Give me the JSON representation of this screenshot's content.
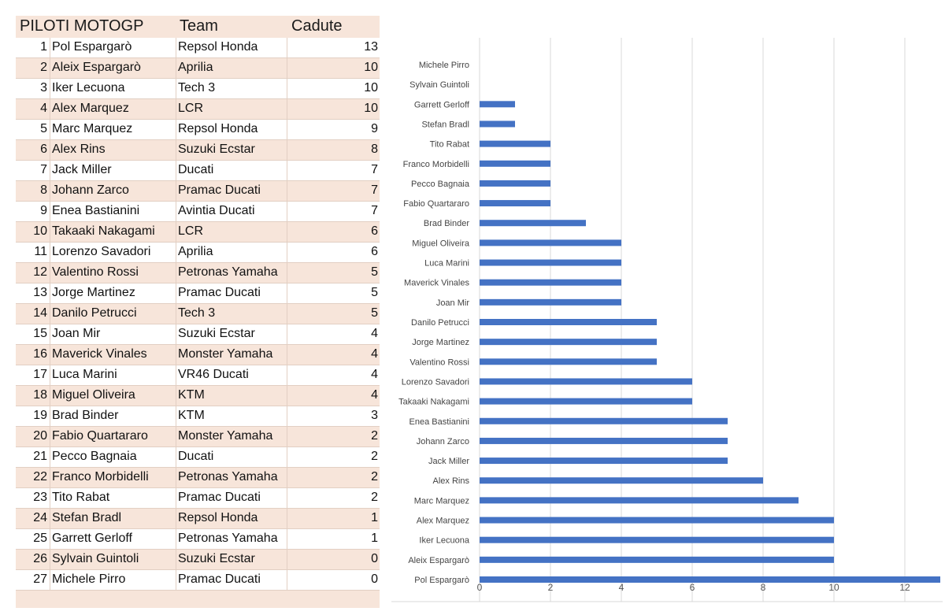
{
  "table": {
    "headers": [
      "PILOTI MOTOGP",
      "Team",
      "Cadute"
    ],
    "rows": [
      {
        "rank": "1",
        "name": "Pol Espargarò",
        "team": "Repsol Honda",
        "value": "13"
      },
      {
        "rank": "2",
        "name": "Aleix Espargarò",
        "team": "Aprilia",
        "value": "10"
      },
      {
        "rank": "3",
        "name": "Iker Lecuona",
        "team": "Tech 3",
        "value": "10"
      },
      {
        "rank": "4",
        "name": "Alex Marquez",
        "team": "LCR",
        "value": "10"
      },
      {
        "rank": "5",
        "name": "Marc Marquez",
        "team": "Repsol Honda",
        "value": "9"
      },
      {
        "rank": "6",
        "name": "Alex Rins",
        "team": "Suzuki Ecstar",
        "value": "8"
      },
      {
        "rank": "7",
        "name": "Jack Miller",
        "team": "Ducati",
        "value": "7"
      },
      {
        "rank": "8",
        "name": "Johann Zarco",
        "team": "Pramac Ducati",
        "value": "7"
      },
      {
        "rank": "9",
        "name": "Enea Bastianini",
        "team": "Avintia Ducati",
        "value": "7"
      },
      {
        "rank": "10",
        "name": "Takaaki Nakagami",
        "team": "LCR",
        "value": "6"
      },
      {
        "rank": "11",
        "name": "Lorenzo Savadori",
        "team": "Aprilia",
        "value": "6"
      },
      {
        "rank": "12",
        "name": "Valentino Rossi",
        "team": "Petronas Yamaha",
        "value": "5"
      },
      {
        "rank": "13",
        "name": "Jorge Martinez",
        "team": "Pramac Ducati",
        "value": "5"
      },
      {
        "rank": "14",
        "name": "Danilo Petrucci",
        "team": "Tech 3",
        "value": "5"
      },
      {
        "rank": "15",
        "name": "Joan Mir",
        "team": "Suzuki Ecstar",
        "value": "4"
      },
      {
        "rank": "16",
        "name": "Maverick Vinales",
        "team": "Monster Yamaha",
        "value": "4"
      },
      {
        "rank": "17",
        "name": "Luca Marini",
        "team": "VR46 Ducati",
        "value": "4"
      },
      {
        "rank": "18",
        "name": "Miguel Oliveira",
        "team": "KTM",
        "value": "4"
      },
      {
        "rank": "19",
        "name": "Brad Binder",
        "team": "KTM",
        "value": "3"
      },
      {
        "rank": "20",
        "name": "Fabio Quartararo",
        "team": "Monster Yamaha",
        "value": "2"
      },
      {
        "rank": "21",
        "name": "Pecco Bagnaia",
        "team": "Ducati",
        "value": "2"
      },
      {
        "rank": "22",
        "name": "Franco Morbidelli",
        "team": "Petronas Yamaha",
        "value": "2"
      },
      {
        "rank": "23",
        "name": "Tito Rabat",
        "team": "Pramac Ducati",
        "value": "2"
      },
      {
        "rank": "24",
        "name": "Stefan Bradl",
        "team": "Repsol Honda",
        "value": "1"
      },
      {
        "rank": "25",
        "name": "Garrett Gerloff",
        "team": "Petronas Yamaha",
        "value": "1"
      },
      {
        "rank": "26",
        "name": "Sylvain Guintoli",
        "team": "Suzuki Ecstar",
        "value": "0"
      },
      {
        "rank": "27",
        "name": "Michele Pirro",
        "team": "Pramac Ducati",
        "value": "0"
      }
    ]
  },
  "chart_data": {
    "type": "bar",
    "orientation": "horizontal",
    "title": "",
    "xlabel": "",
    "ylabel": "",
    "categories": [
      "Michele Pirro",
      "Sylvain Guintoli",
      "Garrett Gerloff",
      "Stefan Bradl",
      "Tito Rabat",
      "Franco Morbidelli",
      "Pecco Bagnaia",
      "Fabio Quartararo",
      "Brad Binder",
      "Miguel Oliveira",
      "Luca Marini",
      "Maverick Vinales",
      "Joan Mir",
      "Danilo Petrucci",
      "Jorge Martinez",
      "Valentino Rossi",
      "Lorenzo Savadori",
      "Takaaki Nakagami",
      "Enea Bastianini",
      "Johann Zarco",
      "Jack Miller",
      "Alex Rins",
      "Marc Marquez",
      "Alex Marquez",
      "Iker Lecuona",
      "Aleix Espargarò",
      "Pol Espargarò"
    ],
    "values": [
      0,
      0,
      1,
      1,
      2,
      2,
      2,
      2,
      3,
      4,
      4,
      4,
      4,
      5,
      5,
      5,
      6,
      6,
      7,
      7,
      7,
      8,
      9,
      10,
      10,
      10,
      13
    ],
    "xlim": [
      0,
      13
    ],
    "xticks": [
      0,
      2,
      4,
      6,
      8,
      10,
      12
    ],
    "grid": true,
    "bar_color": "#4472c4"
  }
}
